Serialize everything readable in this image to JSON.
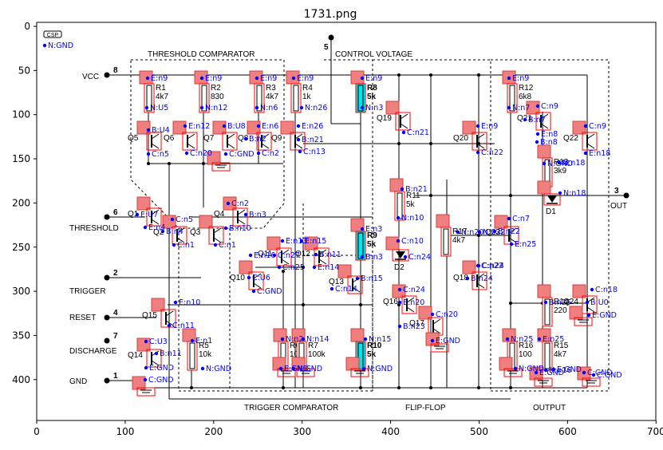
{
  "figure": {
    "title": "1731.png"
  },
  "axes": {
    "x_ticks": [
      "0",
      "100",
      "200",
      "300",
      "400",
      "500",
      "600",
      "700"
    ],
    "y_ticks": [
      "0",
      "50",
      "100",
      "150",
      "200",
      "250",
      "300",
      "350",
      "400"
    ]
  },
  "schematic": {
    "logo": "CSP",
    "sections": {
      "threshold_comparator": "THRESHOLD COMPARATOR",
      "control_voltage": "CONTROL VOLTAGE",
      "trigger_comparator": "TRIGGER COMPARATOR",
      "flip_flop": "FLIP-FLOP",
      "output": "OUTPUT"
    },
    "pins": {
      "vcc": "VCC",
      "vcc_num": "8",
      "threshold": "THRESHOLD",
      "threshold_num": "6",
      "trigger": "TRIGGER",
      "trigger_num": "2",
      "reset": "RESET",
      "reset_num": "4",
      "discharge": "DISCHARGE",
      "discharge_num": "7",
      "gnd": "GND",
      "gnd_num": "1",
      "control_num": "5",
      "out": "OUT",
      "out_num": "3"
    },
    "parts": [
      {
        "ref": "R1",
        "val": "4k7"
      },
      {
        "ref": "R2",
        "val": "830"
      },
      {
        "ref": "R3",
        "val": "4k7"
      },
      {
        "ref": "R4",
        "val": "1k"
      },
      {
        "ref": "R8",
        "val": "5k"
      },
      {
        "ref": "R12",
        "val": "6k8"
      },
      {
        "ref": "R13",
        "val": "3k9"
      },
      {
        "ref": "R11",
        "val": "5k"
      },
      {
        "ref": "R17",
        "val": "4k7"
      },
      {
        "ref": "R9",
        "val": "5k"
      },
      {
        "ref": "R14",
        "val": "220"
      },
      {
        "ref": "R5",
        "val": "10k"
      },
      {
        "ref": "R6",
        "val": "100k"
      },
      {
        "ref": "R7",
        "val": "100k"
      },
      {
        "ref": "R10",
        "val": "5k"
      },
      {
        "ref": "R16",
        "val": "100"
      },
      {
        "ref": "R15",
        "val": "4k7"
      }
    ],
    "transistors": [
      "Q5",
      "Q6",
      "Q7",
      "Q8",
      "Q9",
      "Q1",
      "Q2",
      "Q3",
      "Q4",
      "Q19",
      "Q20",
      "Q21",
      "Q22",
      "Q23",
      "Q11",
      "Q12",
      "Q13",
      "Q10",
      "Q18",
      "Q16",
      "Q17",
      "Q24",
      "Q15",
      "Q14"
    ],
    "diodes": [
      "D1",
      "D2"
    ]
  },
  "net_labels": [
    "E:n9",
    "E:n9",
    "E:n9",
    "E:n9",
    "E:n9",
    "E:n9",
    "N:U5",
    "N:n12",
    "N:n6",
    "N:n26",
    "N:n3",
    "N:n7",
    "C:n9",
    "B:U4",
    "E:n12",
    "B:U8",
    "E:n6",
    "E:n26",
    "E:n9",
    "B:n21",
    "C:n21",
    "C:n9",
    "B:n7",
    "E:n8",
    "B:n8",
    "C:n5",
    "C:n20",
    "C:GND",
    "B:n2",
    "C:n2",
    "C:n13",
    "C:n22",
    "E:n18",
    "N:n18",
    "N:GND",
    "B:n21",
    "N:n18",
    "E:U7",
    "C:n5",
    "C:n2",
    "B:n3",
    "N:n10",
    "E:n4",
    "B:n4",
    "B:n10",
    "C:n7",
    "E:n3",
    "C:n10",
    "N:n20",
    "N:n22",
    "B:n22",
    "C:n1",
    "C:n1",
    "B:n3",
    "C:n24",
    "E:n13",
    "E:n15",
    "E:n25",
    "C:n27",
    "C:n25",
    "C:n24",
    "B:n11",
    "C:n22",
    "B:n24",
    "B:n15",
    "C:U6",
    "E:n14",
    "E:n16",
    "C:n14",
    "C:GND",
    "E:n10",
    "C:n24",
    "C:n18",
    "B:n25",
    "E:n20",
    "B:U0",
    "E:GND",
    "C:n11",
    "C:n20",
    "B:n23",
    "C:U3",
    "E:n1",
    "N:n14",
    "N:n2",
    "N:n15",
    "N:n25",
    "E:n25",
    "B:n11",
    "E:GND",
    "E:GND",
    "N:GND",
    "N:GND",
    "N:GND",
    "N:n16",
    "N:GND",
    "E:GND",
    "C:GND",
    "C:GND",
    "E:GND",
    "C:GND",
    "E:GND",
    "N:GND"
  ]
}
